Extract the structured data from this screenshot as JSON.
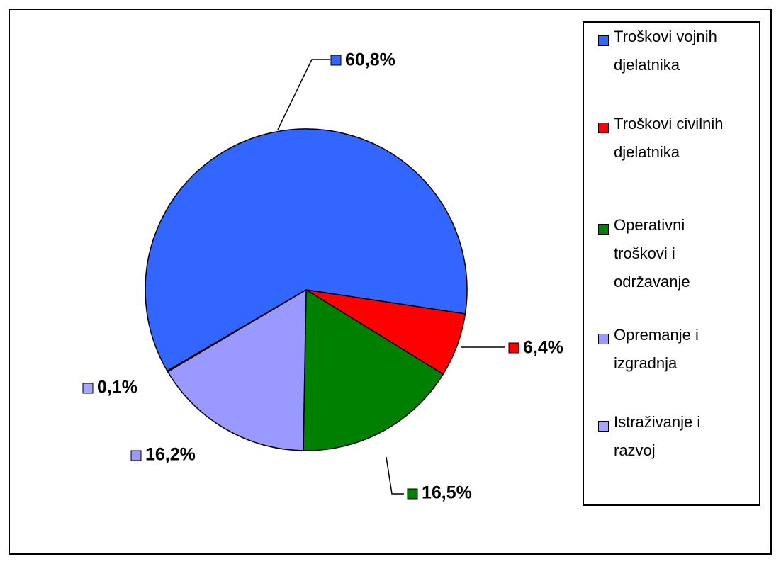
{
  "chart_data": {
    "type": "pie",
    "categories": [
      "Troškovi vojnih djelatnika",
      "Troškovi civilnih djelatnika",
      "Operativni troškovi i održavanje",
      "Opremanje i izgradnja",
      "Istraživanje i razvoj"
    ],
    "values": [
      60.8,
      6.4,
      16.5,
      16.2,
      0.1
    ],
    "value_labels": [
      "60,8%",
      "6,4%",
      "16,5%",
      "16,2%",
      "0,1%"
    ],
    "colors": [
      "#3366ff",
      "#ff0000",
      "#008000",
      "#9999ff",
      "#a6a6ff"
    ],
    "legend": "right"
  }
}
